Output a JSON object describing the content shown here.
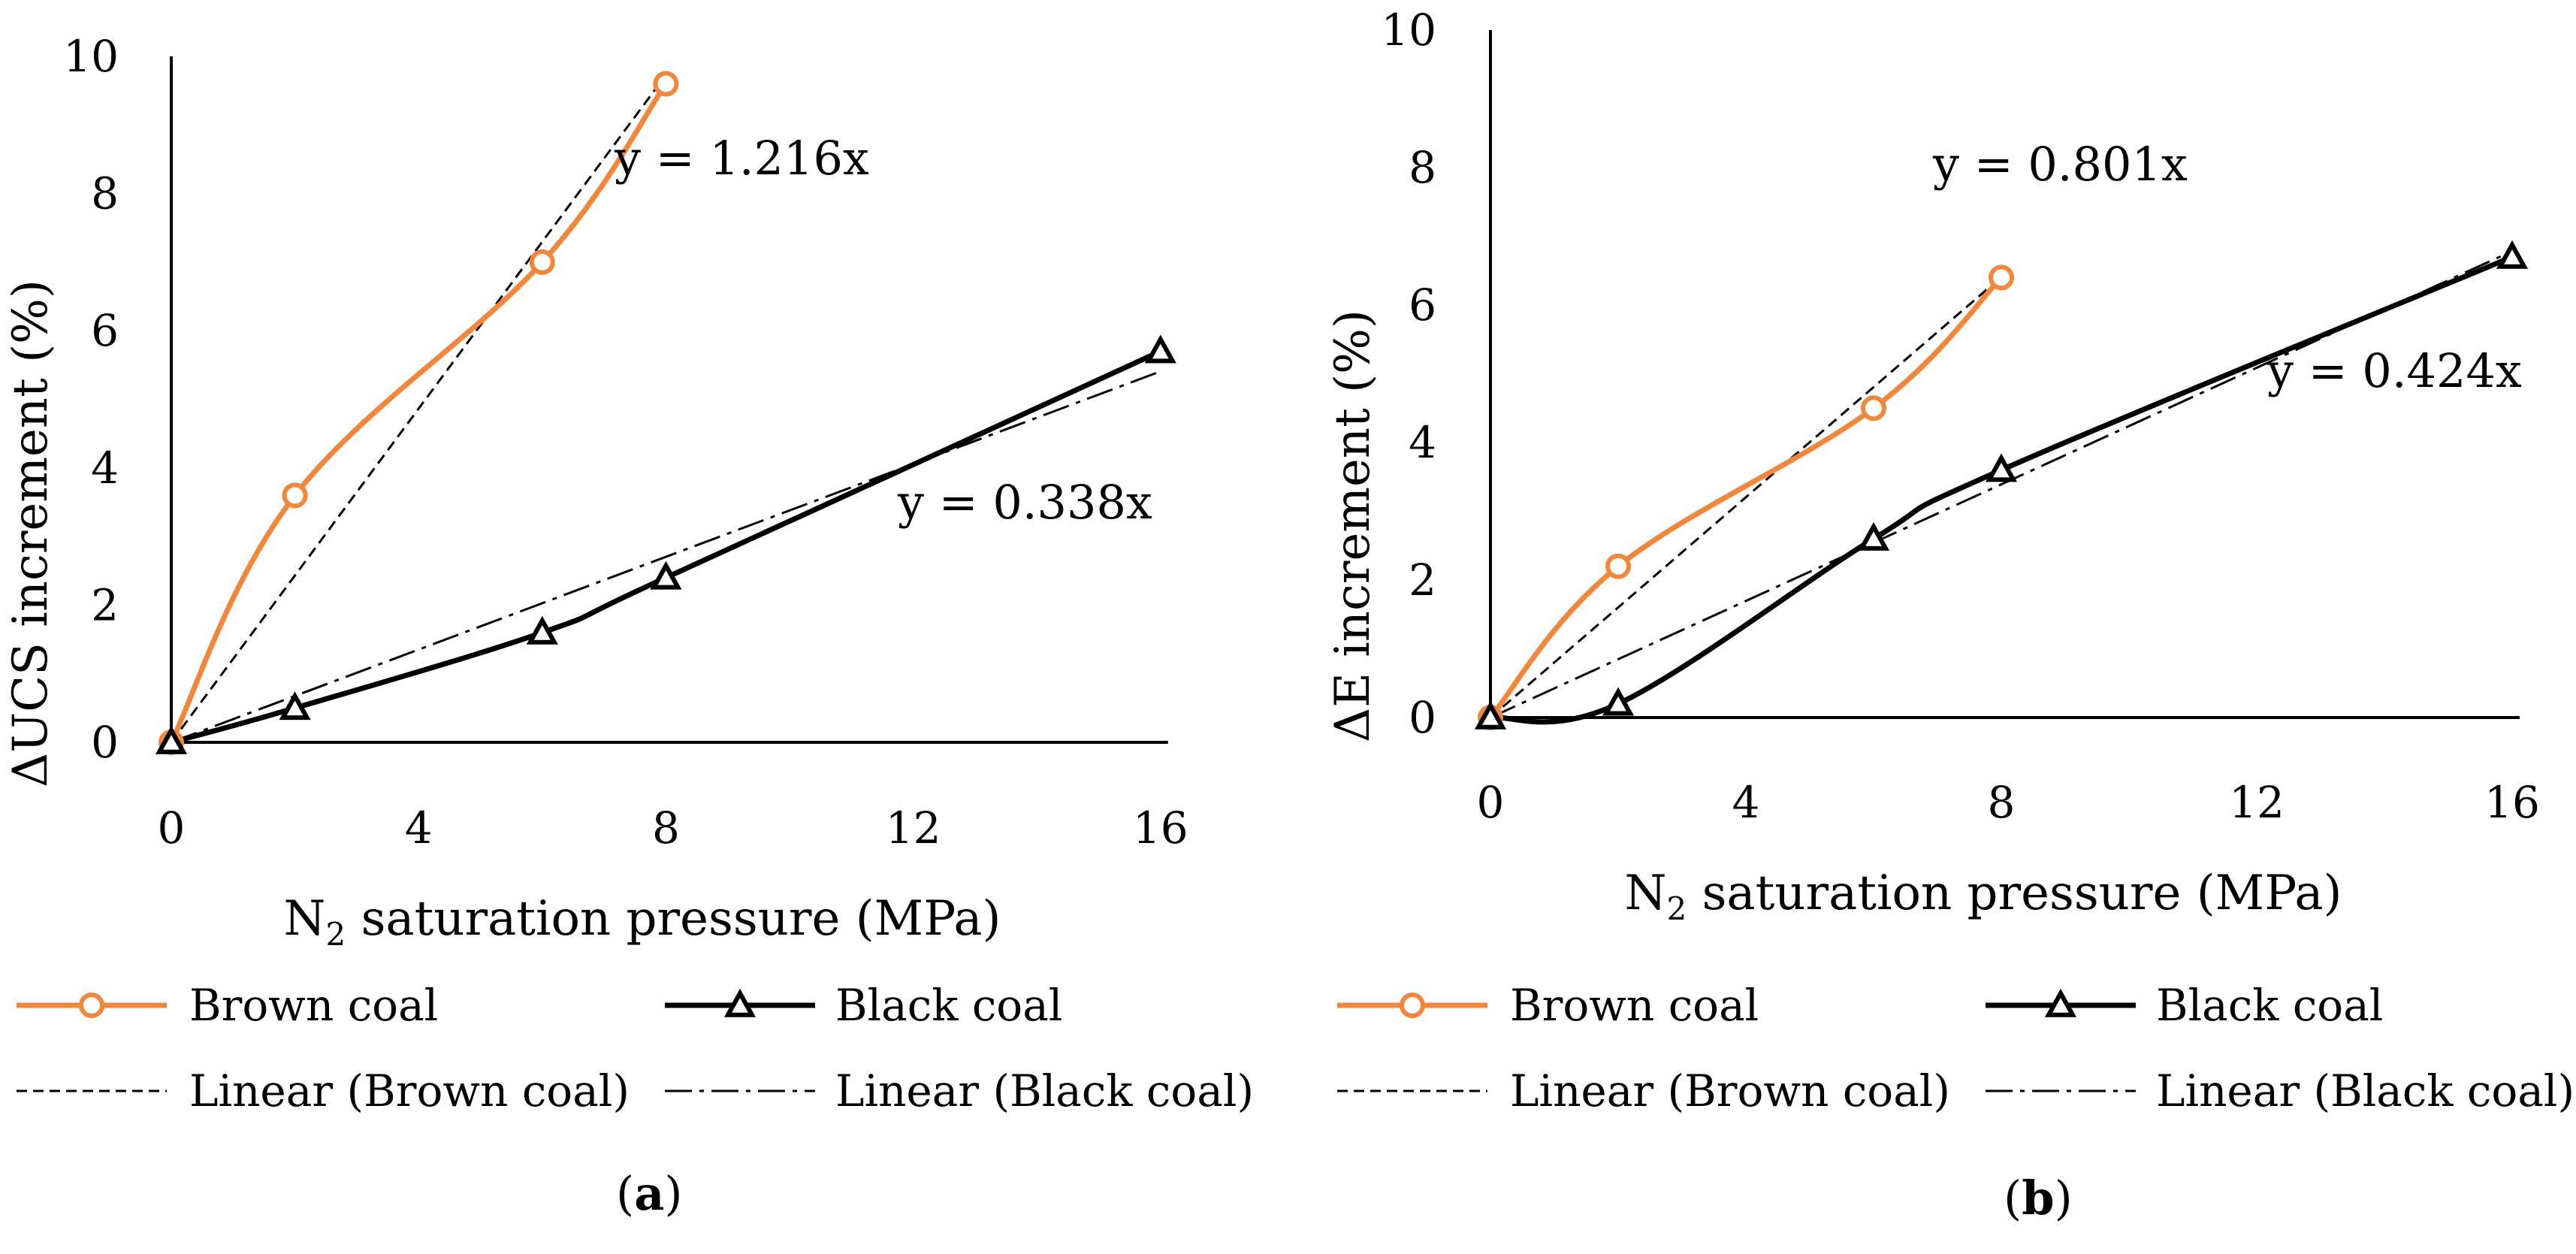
{
  "colors": {
    "brown": "#F4863A",
    "black": "#000000"
  },
  "chart_data": [
    {
      "type": "line",
      "panel_label": "(a)",
      "panel_letter": "a",
      "xlabel_main": "N",
      "xlabel_sub": "2",
      "xlabel_rest": " saturation pressure (MPa)",
      "ylabel": "ΔUCS increment (%)",
      "xlim": [
        0,
        16
      ],
      "ylim": [
        0,
        10
      ],
      "x_ticks": [
        "0",
        "4",
        "8",
        "12",
        "16"
      ],
      "x_tick_values": [
        0,
        4,
        8,
        12,
        16
      ],
      "y_ticks": [
        "0",
        "2",
        "4",
        "6",
        "8",
        "10"
      ],
      "y_tick_values": [
        0,
        2,
        4,
        6,
        8,
        10
      ],
      "series": [
        {
          "name": "Brown coal",
          "marker": "circle",
          "color": "#F4863A",
          "x": [
            0,
            2,
            6,
            8
          ],
          "y": [
            0,
            3.6,
            7.0,
            9.6
          ]
        },
        {
          "name": "Black coal",
          "marker": "triangle",
          "color": "#000000",
          "x": [
            0,
            2,
            6,
            8,
            16
          ],
          "y": [
            0,
            0.5,
            1.6,
            2.4,
            5.7
          ]
        }
      ],
      "trendlines": [
        {
          "name": "Linear (Brown coal)",
          "slope": 1.216,
          "x_end": 8,
          "style": "dashed",
          "equation": "y = 1.216x",
          "equation_color": "#F4863A"
        },
        {
          "name": "Linear (Black coal)",
          "slope": 0.338,
          "x_end": 16,
          "style": "dashdot",
          "equation": "y = 0.338x",
          "equation_color": "#000000"
        }
      ],
      "legend": [
        "Brown coal",
        "Black coal",
        "Linear (Brown coal)",
        "Linear (Black coal)"
      ]
    },
    {
      "type": "line",
      "panel_label": "(b)",
      "panel_letter": "b",
      "xlabel_main": "N",
      "xlabel_sub": "2",
      "xlabel_rest": " saturation pressure (MPa)",
      "ylabel": "ΔE increment (%)",
      "xlim": [
        0,
        16
      ],
      "ylim": [
        0,
        10
      ],
      "x_ticks": [
        "0",
        "4",
        "8",
        "12",
        "16"
      ],
      "x_tick_values": [
        0,
        4,
        8,
        12,
        16
      ],
      "y_ticks": [
        "0",
        "2",
        "4",
        "6",
        "8",
        "10"
      ],
      "y_tick_values": [
        0,
        2,
        4,
        6,
        8,
        10
      ],
      "series": [
        {
          "name": "Brown coal",
          "marker": "circle",
          "color": "#F4863A",
          "x": [
            0,
            2,
            6,
            8
          ],
          "y": [
            0,
            2.2,
            4.5,
            6.4
          ]
        },
        {
          "name": "Black coal",
          "marker": "triangle",
          "color": "#000000",
          "x": [
            0,
            2,
            6,
            8,
            16
          ],
          "y": [
            0,
            0.2,
            2.6,
            3.6,
            6.7
          ]
        }
      ],
      "trendlines": [
        {
          "name": "Linear (Brown coal)",
          "slope": 0.801,
          "x_end": 8,
          "style": "dashed",
          "equation": "y = 0.801x",
          "equation_color": "#F4863A"
        },
        {
          "name": "Linear (Black coal)",
          "slope": 0.424,
          "x_end": 16,
          "style": "dashdot",
          "equation": "y = 0.424x",
          "equation_color": "#000000"
        }
      ],
      "legend": [
        "Brown coal",
        "Black coal",
        "Linear (Brown coal)",
        "Linear (Black coal)"
      ]
    }
  ]
}
